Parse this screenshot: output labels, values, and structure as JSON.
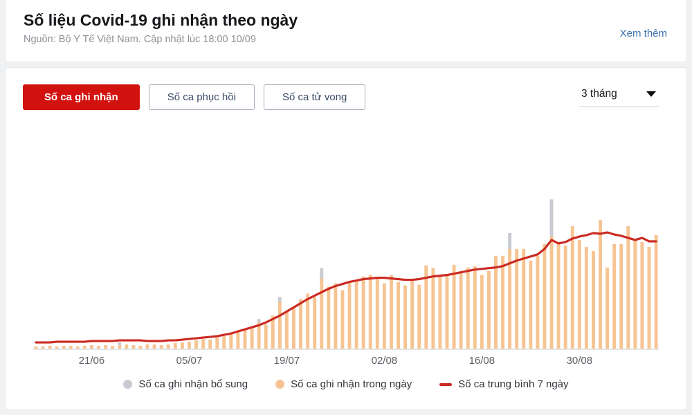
{
  "header": {
    "title": "Số liệu Covid-19 ghi nhận theo ngày",
    "subtitle": "Nguồn: Bộ Y Tế Việt Nam. Cập nhật lúc 18:00 10/09",
    "see_more": "Xem thêm"
  },
  "controls": {
    "tabs": [
      {
        "label": "Số ca ghi nhận",
        "active": true
      },
      {
        "label": "Số ca phục hồi",
        "active": false
      },
      {
        "label": "Số ca tử vong",
        "active": false
      }
    ],
    "range_selected": "3 tháng"
  },
  "colors": {
    "accent_red": "#d2120f",
    "bar_orange": "#f6c493",
    "bar_gray": "#c7cbd1",
    "line_red": "#cb2a22",
    "link_blue": "#3c72ad"
  },
  "legend": {
    "items": [
      {
        "label": "Số ca ghi nhận bổ sung",
        "shape": "dot",
        "color": "#c7cbd1"
      },
      {
        "label": "Số ca ghi nhận trong ngày",
        "shape": "dot",
        "color": "#f6c493"
      },
      {
        "label": "Số ca trung bình 7 ngày",
        "shape": "line",
        "color": "#cb2a22"
      }
    ]
  },
  "chart_data": {
    "type": "bar",
    "note": "values are relative heights (no y-axis labels shown in chart)",
    "x_tick_labels": [
      "21/06",
      "05/07",
      "19/07",
      "02/08",
      "16/08",
      "30/08"
    ],
    "x_tick_indices": [
      8,
      22,
      36,
      50,
      64,
      78
    ],
    "ylim": [
      0,
      335
    ],
    "grid": false,
    "legend_position": "bottom",
    "series": [
      {
        "name": "Số ca ghi nhận trong ngày",
        "type": "bar",
        "color": "#f6c493",
        "values": [
          3,
          3,
          4,
          3,
          4,
          4,
          3,
          4,
          5,
          4,
          5,
          4,
          5,
          6,
          5,
          4,
          6,
          6,
          5,
          6,
          8,
          9,
          10,
          12,
          14,
          13,
          16,
          18,
          22,
          25,
          28,
          32,
          38,
          35,
          48,
          68,
          55,
          60,
          72,
          80,
          75,
          102,
          90,
          95,
          85,
          98,
          100,
          105,
          107,
          103,
          95,
          107,
          97,
          92,
          100,
          93,
          121,
          117,
          105,
          107,
          122,
          113,
          118,
          120,
          107,
          113,
          135,
          135,
          145,
          145,
          145,
          128,
          135,
          152,
          163,
          155,
          150,
          178,
          158,
          148,
          142,
          187,
          118,
          152,
          152,
          178,
          158,
          155,
          148,
          165
        ]
      },
      {
        "name": "Số ca ghi nhận bổ sung",
        "type": "bar-stacked-on-top",
        "color": "#c7cbd1",
        "values": [
          0,
          0,
          0,
          0,
          0,
          0,
          0,
          0,
          0,
          0,
          0,
          0,
          4,
          0,
          0,
          0,
          0,
          0,
          0,
          0,
          0,
          0,
          0,
          0,
          0,
          0,
          0,
          0,
          0,
          0,
          0,
          0,
          5,
          0,
          0,
          7,
          0,
          0,
          0,
          0,
          0,
          15,
          0,
          0,
          0,
          0,
          0,
          0,
          0,
          0,
          0,
          0,
          0,
          0,
          0,
          0,
          0,
          0,
          0,
          0,
          0,
          0,
          0,
          0,
          0,
          0,
          0,
          0,
          23,
          0,
          0,
          0,
          0,
          0,
          54,
          0,
          0,
          0,
          0,
          0,
          0,
          0,
          0,
          0,
          0,
          0,
          0,
          0,
          0,
          0
        ]
      },
      {
        "name": "Số ca trung bình 7 ngày",
        "type": "line",
        "color": "#cb2a22",
        "values": [
          9,
          9,
          9,
          10,
          10,
          10,
          10,
          10,
          11,
          11,
          11,
          11,
          12,
          12,
          12,
          12,
          11,
          11,
          11,
          12,
          12,
          13,
          14,
          15,
          16,
          17,
          18,
          20,
          22,
          25,
          28,
          31,
          34,
          38,
          43,
          48,
          54,
          60,
          66,
          72,
          77,
          82,
          87,
          91,
          94,
          97,
          99,
          101,
          102,
          103,
          103,
          102,
          101,
          100,
          100,
          101,
          103,
          105,
          106,
          107,
          109,
          111,
          113,
          115,
          116,
          117,
          118,
          120,
          124,
          128,
          131,
          134,
          137,
          145,
          158,
          153,
          155,
          160,
          163,
          165,
          168,
          167,
          169,
          166,
          164,
          161,
          158,
          161,
          156,
          156
        ]
      }
    ]
  }
}
